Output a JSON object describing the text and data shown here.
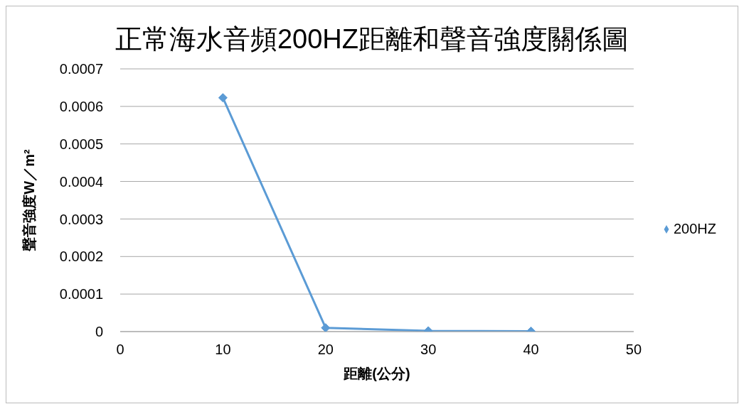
{
  "chart_data": {
    "type": "line",
    "title": "正常海水音頻200HZ距離和聲音強度關係圖",
    "xlabel": "距離(公分)",
    "ylabel": "聲音強度W／m²",
    "x": [
      10,
      20,
      30,
      40
    ],
    "series": [
      {
        "name": "200HZ",
        "color": "#5b9bd5",
        "values": [
          0.000623,
          1e-05,
          2e-06,
          1e-06
        ]
      }
    ],
    "xlim": [
      0,
      50
    ],
    "xticks": [
      0,
      10,
      20,
      30,
      40,
      50
    ],
    "ylim": [
      0,
      0.0007
    ],
    "yticks": [
      0,
      0.0001,
      0.0002,
      0.0003,
      0.0004,
      0.0005,
      0.0006,
      0.0007
    ],
    "grid": "y",
    "legend": "right",
    "marker": "diamond",
    "line_style": "solid"
  }
}
